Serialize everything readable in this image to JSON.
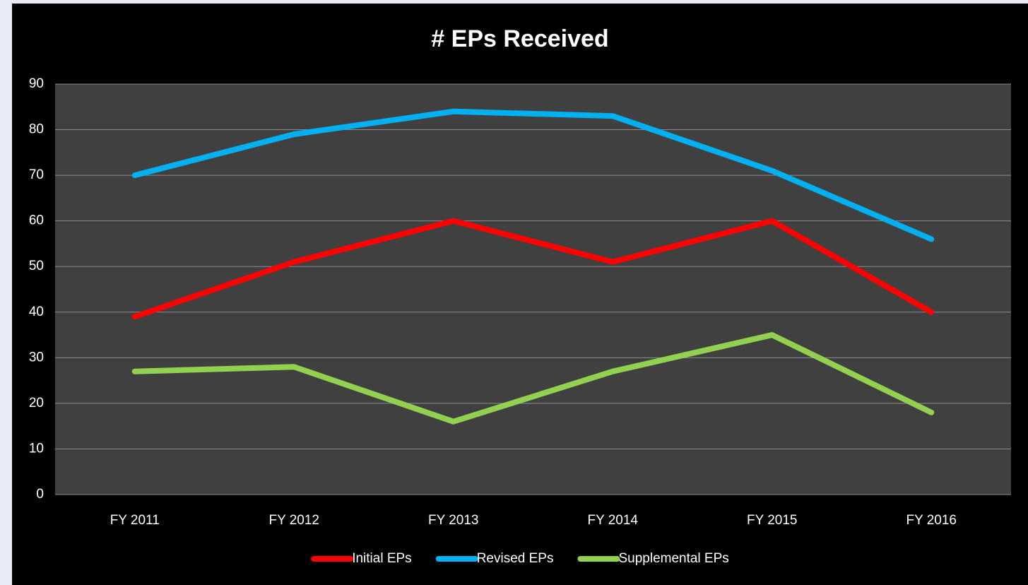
{
  "chart_data": {
    "type": "line",
    "title": "# EPs Received",
    "categories": [
      "FY 2011",
      "FY 2012",
      "FY 2013",
      "FY 2014",
      "FY 2015",
      "FY 2016"
    ],
    "series": [
      {
        "name": "Initial EPs",
        "color": "#ff0000",
        "values": [
          39,
          51,
          60,
          51,
          60,
          40
        ]
      },
      {
        "name": "Revised EPs",
        "color": "#00b0f0",
        "values": [
          70,
          79,
          84,
          83,
          71,
          56
        ]
      },
      {
        "name": "Supplemental EPs",
        "color": "#92d050",
        "values": [
          27,
          28,
          16,
          27,
          35,
          18
        ]
      }
    ],
    "ylim": [
      0,
      90
    ],
    "yticks": [
      0,
      10,
      20,
      30,
      40,
      50,
      60,
      70,
      80,
      90
    ],
    "grid": true,
    "legend": "bottom"
  }
}
